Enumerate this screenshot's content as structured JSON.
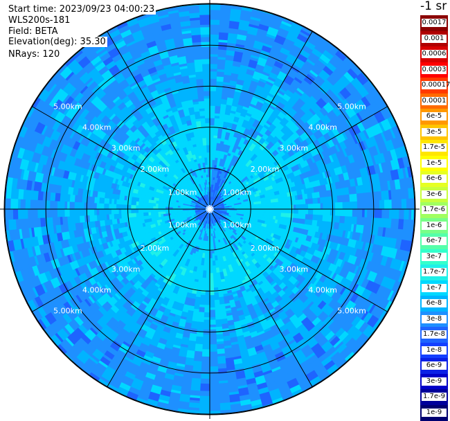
{
  "header": {
    "start_time": "Start time: 2023/09/23 04:00:23",
    "instrument": "WLS200s-181",
    "field": "Field: BETA",
    "elevation": "Elevation(deg): 35.30",
    "nrays": "NRays: 120"
  },
  "chart_data": {
    "type": "heatmap",
    "subtype": "polar-ppi",
    "title": "",
    "rings_km": [
      1,
      2,
      3,
      4,
      5
    ],
    "ring_labels": [
      "1.00km",
      "2.00km",
      "3.00km",
      "4.00km",
      "5.00km"
    ],
    "max_range_km": 5.0,
    "radial_line_angles_deg": [
      0,
      30,
      60,
      90,
      120,
      150,
      180,
      210,
      240,
      270,
      300,
      330
    ],
    "n_rays": 120,
    "colorbar": {
      "unit_label": "-1 sr",
      "levels": [
        {
          "label": "0.0017",
          "value": 0.0017,
          "color": "#8b0000"
        },
        {
          "label": "0.001",
          "value": 0.001,
          "color": "#b00000"
        },
        {
          "label": "0.0006",
          "value": 0.0006,
          "color": "#d80000"
        },
        {
          "label": "0.0003",
          "value": 0.0003,
          "color": "#ff0000"
        },
        {
          "label": "0.00017",
          "value": 0.00017,
          "color": "#ff3a00"
        },
        {
          "label": "0.0001",
          "value": 0.0001,
          "color": "#ff6a00"
        },
        {
          "label": "6e-5",
          "value": 6e-05,
          "color": "#ff9800"
        },
        {
          "label": "3e-5",
          "value": 3e-05,
          "color": "#ffc400"
        },
        {
          "label": "1.7e-5",
          "value": 1.7e-05,
          "color": "#ffe600"
        },
        {
          "label": "1e-5",
          "value": 1e-05,
          "color": "#ffff00"
        },
        {
          "label": "6e-6",
          "value": 6e-06,
          "color": "#e6ff22"
        },
        {
          "label": "3e-6",
          "value": 3e-06,
          "color": "#c8ff3c"
        },
        {
          "label": "1.7e-6",
          "value": 1.7e-06,
          "color": "#a0ff60"
        },
        {
          "label": "1e-6",
          "value": 1e-06,
          "color": "#78ff88"
        },
        {
          "label": "6e-7",
          "value": 6e-07,
          "color": "#55ffaa"
        },
        {
          "label": "3e-7",
          "value": 3e-07,
          "color": "#33ffcc"
        },
        {
          "label": "1.7e-7",
          "value": 1.7e-07,
          "color": "#1ff0e8"
        },
        {
          "label": "1e-7",
          "value": 1e-07,
          "color": "#00d8ff"
        },
        {
          "label": "6e-8",
          "value": 6e-08,
          "color": "#00b4ff"
        },
        {
          "label": "3e-8",
          "value": 3e-08,
          "color": "#1e90ff"
        },
        {
          "label": "1.7e-8",
          "value": 1.7e-08,
          "color": "#1e64ff"
        },
        {
          "label": "1e-8",
          "value": 1e-08,
          "color": "#1440ff"
        },
        {
          "label": "6e-9",
          "value": 6e-09,
          "color": "#0a20e6"
        },
        {
          "label": "3e-9",
          "value": 3e-09,
          "color": "#0000c8"
        },
        {
          "label": "1.7e-9",
          "value": 1.7e-09,
          "color": "#00009a"
        },
        {
          "label": "1e-9",
          "value": 1e-09,
          "color": "#000070"
        }
      ]
    },
    "field_colors": {
      "background_dominant": "#1e90ff",
      "inner_dominant": "#00d8ff",
      "mid_ring": "#00b4ff",
      "speckle_dark": "#1e64ff",
      "speckle_light": "#1ff0e8"
    }
  }
}
